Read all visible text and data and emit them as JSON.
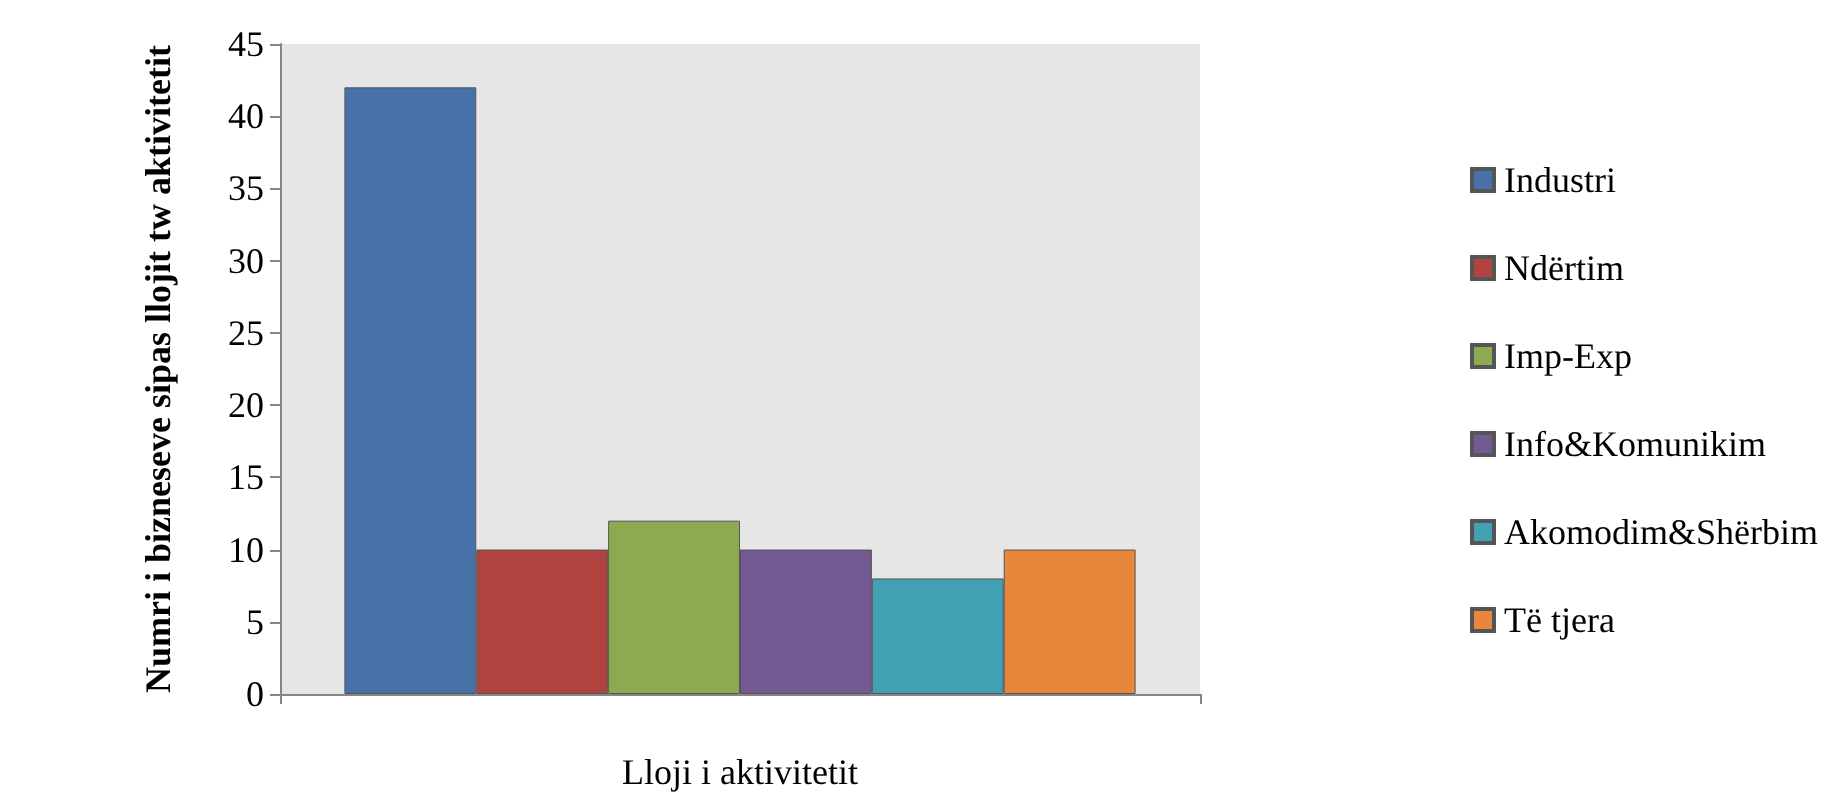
{
  "chart_data": {
    "type": "bar",
    "xlabel": "Lloji i aktivitetit",
    "ylabel": "Numri i bizneseve sipas llojit tw aktivitetit",
    "categories": [
      null
    ],
    "series": [
      {
        "name": "Industri",
        "color": "#4672a8",
        "values": [
          42
        ]
      },
      {
        "name": "Ndërtim",
        "color": "#b0433f",
        "values": [
          10
        ]
      },
      {
        "name": "Imp-Exp",
        "color": "#8cab50",
        "values": [
          12
        ]
      },
      {
        "name": "Info&Komunikim",
        "color": "#735a93",
        "values": [
          10
        ]
      },
      {
        "name": "Akomodim&Shërbim",
        "color": "#42a0b5",
        "values": [
          8
        ]
      },
      {
        "name": "Të tjera",
        "color": "#e8873c",
        "values": [
          10
        ]
      }
    ],
    "ylim": [
      0,
      45
    ],
    "yticks": [
      0,
      5,
      10,
      15,
      20,
      25,
      30,
      35,
      40,
      45
    ],
    "grid": false,
    "legend": "right"
  }
}
